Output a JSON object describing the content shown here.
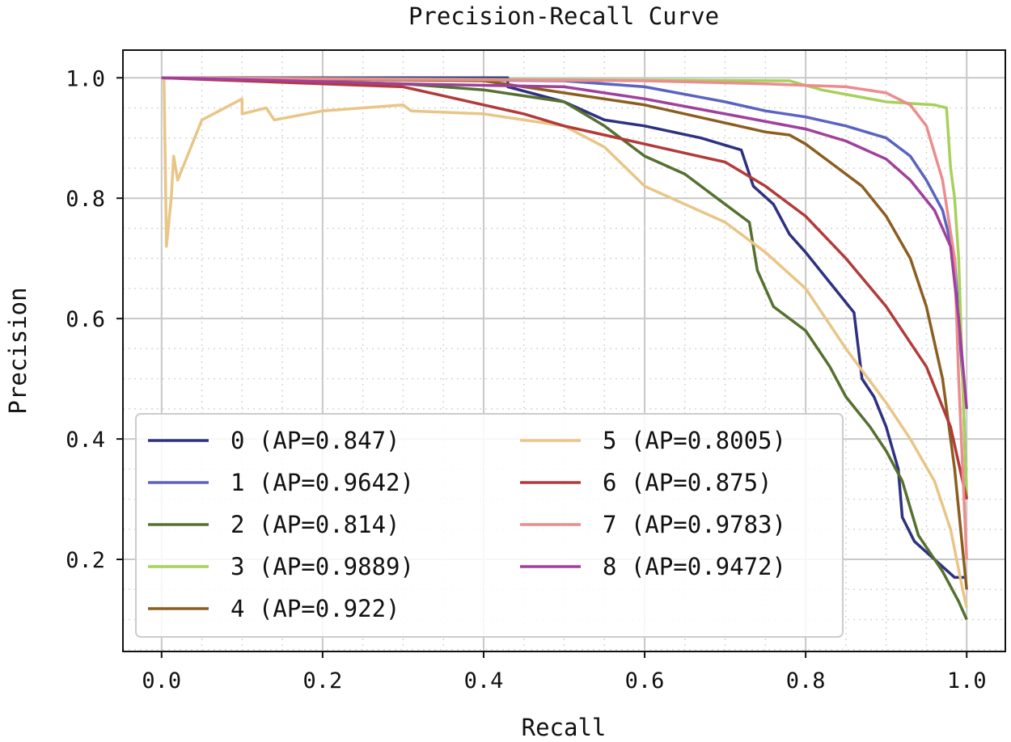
{
  "chart_data": {
    "type": "line",
    "title": "Precision-Recall Curve",
    "xlabel": "Recall",
    "ylabel": "Precision",
    "xlim": [
      -0.048,
      1.048
    ],
    "ylim": [
      0.047,
      1.046
    ],
    "xticks": [
      "0.0",
      "0.2",
      "0.4",
      "0.6",
      "0.8",
      "1.0"
    ],
    "yticks": [
      "0.2",
      "0.4",
      "0.6",
      "0.8",
      "1.0"
    ],
    "xtick_values": [
      0,
      0.2,
      0.4,
      0.6,
      0.8,
      1.0
    ],
    "ytick_values": [
      0.2,
      0.4,
      0.6,
      0.8,
      1.0
    ],
    "grid": {
      "major": true,
      "minor": true,
      "minor_step": 0.05,
      "minor_style": "dotted"
    },
    "legend_placement": "lower-left",
    "series": [
      {
        "name": "0 (AP=0.847)",
        "color": "#2e3180",
        "points": [
          [
            0,
            1
          ],
          [
            0.43,
            1
          ],
          [
            0.43,
            0.985
          ],
          [
            0.5,
            0.96
          ],
          [
            0.55,
            0.93
          ],
          [
            0.6,
            0.92
          ],
          [
            0.67,
            0.9
          ],
          [
            0.72,
            0.88
          ],
          [
            0.735,
            0.82
          ],
          [
            0.76,
            0.79
          ],
          [
            0.78,
            0.74
          ],
          [
            0.8,
            0.71
          ],
          [
            0.83,
            0.66
          ],
          [
            0.86,
            0.61
          ],
          [
            0.87,
            0.5
          ],
          [
            0.885,
            0.47
          ],
          [
            0.9,
            0.42
          ],
          [
            0.915,
            0.35
          ],
          [
            0.92,
            0.27
          ],
          [
            0.935,
            0.23
          ],
          [
            0.96,
            0.2
          ],
          [
            0.985,
            0.17
          ],
          [
            1.0,
            0.17
          ]
        ]
      },
      {
        "name": "1 (AP=0.9642)",
        "color": "#5b63c0",
        "points": [
          [
            0,
            1
          ],
          [
            0.5,
            0.995
          ],
          [
            0.6,
            0.985
          ],
          [
            0.7,
            0.96
          ],
          [
            0.75,
            0.945
          ],
          [
            0.8,
            0.935
          ],
          [
            0.85,
            0.92
          ],
          [
            0.9,
            0.9
          ],
          [
            0.93,
            0.87
          ],
          [
            0.95,
            0.83
          ],
          [
            0.97,
            0.78
          ],
          [
            0.985,
            0.7
          ],
          [
            0.995,
            0.5
          ],
          [
            1,
            0.3
          ]
        ]
      },
      {
        "name": "2 (AP=0.814)",
        "color": "#55702f",
        "points": [
          [
            0,
            1
          ],
          [
            0.3,
            0.99
          ],
          [
            0.4,
            0.98
          ],
          [
            0.5,
            0.96
          ],
          [
            0.55,
            0.92
          ],
          [
            0.6,
            0.87
          ],
          [
            0.65,
            0.84
          ],
          [
            0.7,
            0.79
          ],
          [
            0.73,
            0.76
          ],
          [
            0.74,
            0.68
          ],
          [
            0.76,
            0.62
          ],
          [
            0.8,
            0.58
          ],
          [
            0.83,
            0.52
          ],
          [
            0.85,
            0.47
          ],
          [
            0.88,
            0.42
          ],
          [
            0.9,
            0.38
          ],
          [
            0.92,
            0.33
          ],
          [
            0.94,
            0.24
          ],
          [
            0.97,
            0.18
          ],
          [
            0.99,
            0.13
          ],
          [
            1,
            0.1
          ]
        ]
      },
      {
        "name": "3 (AP=0.9889)",
        "color": "#a6d15a",
        "points": [
          [
            0,
            1
          ],
          [
            0.78,
            0.995
          ],
          [
            0.82,
            0.98
          ],
          [
            0.86,
            0.97
          ],
          [
            0.9,
            0.96
          ],
          [
            0.96,
            0.955
          ],
          [
            0.975,
            0.95
          ],
          [
            0.98,
            0.85
          ],
          [
            0.985,
            0.8
          ],
          [
            0.99,
            0.7
          ],
          [
            0.995,
            0.5
          ],
          [
            1,
            0.3
          ]
        ]
      },
      {
        "name": "4 (AP=0.922)",
        "color": "#8b5e20",
        "points": [
          [
            0,
            1
          ],
          [
            0.4,
            0.995
          ],
          [
            0.5,
            0.975
          ],
          [
            0.6,
            0.955
          ],
          [
            0.7,
            0.925
          ],
          [
            0.75,
            0.91
          ],
          [
            0.78,
            0.905
          ],
          [
            0.8,
            0.89
          ],
          [
            0.83,
            0.86
          ],
          [
            0.87,
            0.82
          ],
          [
            0.9,
            0.77
          ],
          [
            0.93,
            0.7
          ],
          [
            0.95,
            0.62
          ],
          [
            0.97,
            0.5
          ],
          [
            0.985,
            0.35
          ],
          [
            1,
            0.15
          ]
        ]
      },
      {
        "name": "5 (AP=0.8005)",
        "color": "#e9c586",
        "points": [
          [
            0.003,
            1
          ],
          [
            0.006,
            0.72
          ],
          [
            0.012,
            0.8
          ],
          [
            0.015,
            0.87
          ],
          [
            0.02,
            0.83
          ],
          [
            0.05,
            0.93
          ],
          [
            0.1,
            0.965
          ],
          [
            0.1,
            0.94
          ],
          [
            0.13,
            0.95
          ],
          [
            0.14,
            0.93
          ],
          [
            0.2,
            0.945
          ],
          [
            0.3,
            0.955
          ],
          [
            0.31,
            0.945
          ],
          [
            0.4,
            0.94
          ],
          [
            0.5,
            0.92
          ],
          [
            0.55,
            0.885
          ],
          [
            0.6,
            0.82
          ],
          [
            0.65,
            0.79
          ],
          [
            0.7,
            0.76
          ],
          [
            0.75,
            0.71
          ],
          [
            0.8,
            0.65
          ],
          [
            0.85,
            0.55
          ],
          [
            0.9,
            0.46
          ],
          [
            0.93,
            0.4
          ],
          [
            0.96,
            0.33
          ],
          [
            0.98,
            0.25
          ],
          [
            0.995,
            0.15
          ],
          [
            1,
            0.12
          ]
        ]
      },
      {
        "name": "6 (AP=0.875)",
        "color": "#b23a3a",
        "points": [
          [
            0,
            1
          ],
          [
            0.1,
            0.995
          ],
          [
            0.2,
            0.99
          ],
          [
            0.3,
            0.985
          ],
          [
            0.35,
            0.97
          ],
          [
            0.4,
            0.955
          ],
          [
            0.45,
            0.94
          ],
          [
            0.5,
            0.92
          ],
          [
            0.55,
            0.905
          ],
          [
            0.6,
            0.89
          ],
          [
            0.65,
            0.875
          ],
          [
            0.7,
            0.86
          ],
          [
            0.75,
            0.82
          ],
          [
            0.8,
            0.77
          ],
          [
            0.85,
            0.7
          ],
          [
            0.9,
            0.62
          ],
          [
            0.95,
            0.52
          ],
          [
            0.98,
            0.42
          ],
          [
            1,
            0.3
          ]
        ]
      },
      {
        "name": "7 (AP=0.9783)",
        "color": "#ec8c8e",
        "points": [
          [
            0,
            1
          ],
          [
            0.6,
            0.995
          ],
          [
            0.75,
            0.99
          ],
          [
            0.85,
            0.985
          ],
          [
            0.9,
            0.975
          ],
          [
            0.93,
            0.955
          ],
          [
            0.95,
            0.92
          ],
          [
            0.97,
            0.83
          ],
          [
            0.985,
            0.7
          ],
          [
            0.99,
            0.5
          ],
          [
            1,
            0.2
          ]
        ]
      },
      {
        "name": "8 (AP=0.9472)",
        "color": "#a0409c",
        "points": [
          [
            0,
            1
          ],
          [
            0.1,
            0.997
          ],
          [
            0.3,
            0.99
          ],
          [
            0.5,
            0.985
          ],
          [
            0.6,
            0.965
          ],
          [
            0.7,
            0.94
          ],
          [
            0.8,
            0.915
          ],
          [
            0.85,
            0.895
          ],
          [
            0.9,
            0.865
          ],
          [
            0.93,
            0.83
          ],
          [
            0.96,
            0.78
          ],
          [
            0.98,
            0.72
          ],
          [
            0.99,
            0.6
          ],
          [
            1,
            0.45
          ]
        ]
      }
    ]
  }
}
